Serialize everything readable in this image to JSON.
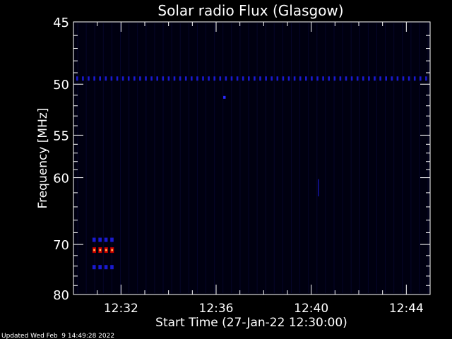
{
  "chart_data": {
    "type": "heatmap",
    "title": "Solar radio Flux (Glasgow)",
    "xlabel": "Start Time (27-Jan-22 12:30:00)",
    "ylabel": "Frequency [MHz]",
    "x_start_minutes": 0,
    "x_end_minutes": 15,
    "xlim_label": [
      "12:30",
      "12:45"
    ],
    "xticks": [
      {
        "minute": 2,
        "label": "12:32"
      },
      {
        "minute": 6,
        "label": "12:36"
      },
      {
        "minute": 10,
        "label": "12:40"
      },
      {
        "minute": 14,
        "label": "12:44"
      }
    ],
    "ylim": [
      45,
      80
    ],
    "yscale": "reciprocal",
    "yticks": [
      {
        "value": 45,
        "label": "45"
      },
      {
        "value": 50,
        "label": "50"
      },
      {
        "value": 55,
        "label": "55"
      },
      {
        "value": 60,
        "label": "60"
      },
      {
        "value": 70,
        "label": "70"
      },
      {
        "value": 80,
        "label": "80"
      }
    ],
    "minor_yticks": [
      46,
      47,
      48,
      49,
      51,
      52,
      53,
      54,
      56,
      57,
      58,
      59,
      62,
      64,
      66,
      68,
      72,
      74,
      76,
      78
    ],
    "background_color": "#000010",
    "features": [
      {
        "name": "persistent emission line",
        "frequency_mhz": 49.5,
        "t_start_min": 0,
        "t_end_min": 15,
        "intensity": "low",
        "color": "#1a1ad0"
      },
      {
        "name": "strong burst",
        "frequency_mhz": 71.0,
        "t_start_min": 0.8,
        "t_end_min": 1.8,
        "intensity": "high",
        "color": "#ff3b00"
      },
      {
        "name": "upper sideband",
        "frequency_mhz": 69.2,
        "t_start_min": 0.8,
        "t_end_min": 1.8,
        "intensity": "low",
        "color": "#1a1ad0"
      },
      {
        "name": "lower sideband",
        "frequency_mhz": 74.2,
        "t_start_min": 0.8,
        "t_end_min": 1.8,
        "intensity": "low",
        "color": "#1a1ad0"
      },
      {
        "name": "spot",
        "frequency_mhz": 51.2,
        "t_start_min": 6.3,
        "t_end_min": 6.4,
        "intensity": "low",
        "color": "#2a2aff"
      },
      {
        "name": "vertical streak",
        "frequency_mhz_range": [
          60.2,
          62.5
        ],
        "t_start_min": 10.3,
        "t_end_min": 10.35,
        "intensity": "low",
        "color": "#1515a0"
      }
    ]
  },
  "footer": {
    "updated_text": "Updated Wed Feb  9 14:49:28 2022"
  }
}
